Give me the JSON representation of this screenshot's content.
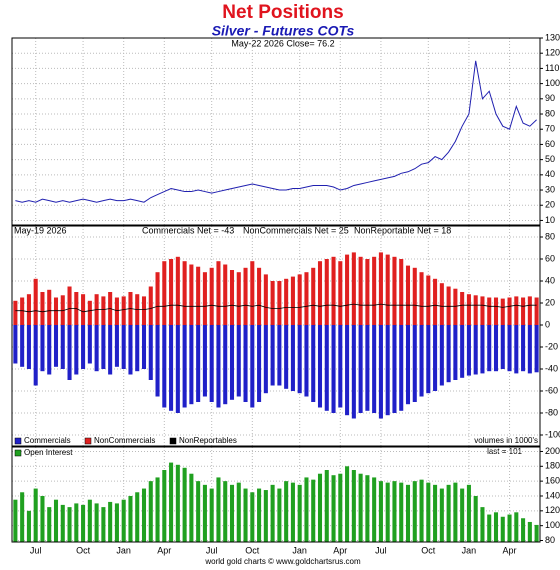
{
  "title": "Net Positions",
  "subtitle": "Silver - Futures COTs",
  "footer": "world gold charts © www.goldchartsrus.com",
  "chart_data": [
    {
      "type": "line",
      "annotation": "May-22  2026  Close= 76.2",
      "color": "#2020b0",
      "values": [
        23,
        22,
        23,
        22,
        24,
        23,
        22,
        23,
        22,
        23,
        24,
        23,
        22,
        23,
        24,
        23,
        23,
        24,
        23,
        22,
        25,
        27,
        29,
        31,
        30,
        29,
        29,
        30,
        29,
        28,
        29,
        30,
        31,
        32,
        33,
        34,
        33,
        32,
        31,
        30,
        30,
        31,
        31,
        32,
        33,
        33,
        33,
        32,
        30,
        31,
        33,
        34,
        35,
        36,
        37,
        38,
        39,
        41,
        42,
        44,
        47,
        48,
        52,
        50,
        55,
        62,
        72,
        80,
        115,
        90,
        95,
        80,
        72,
        70,
        85,
        74,
        72,
        76.2
      ],
      "ylim": [
        7,
        130
      ],
      "yticks": [
        10,
        20,
        30,
        40,
        50,
        60,
        70,
        80,
        90,
        100,
        110,
        120,
        130
      ],
      "grid": true
    },
    {
      "type": "bar",
      "stacked": true,
      "date_label": "May-19  2026",
      "annotations": [
        "Commercials Net = -43",
        "NonCommercials Net = 25",
        "NonReportable Net = 18"
      ],
      "note": "volumes in 1000's",
      "series": [
        {
          "name": "Commercials",
          "color": "#2020c8",
          "values": [
            -35,
            -38,
            -40,
            -55,
            -42,
            -45,
            -38,
            -40,
            -50,
            -45,
            -40,
            -35,
            -42,
            -40,
            -45,
            -38,
            -40,
            -45,
            -42,
            -40,
            -50,
            -65,
            -75,
            -78,
            -80,
            -75,
            -72,
            -70,
            -65,
            -70,
            -75,
            -72,
            -68,
            -65,
            -70,
            -75,
            -70,
            -62,
            -55,
            -55,
            -58,
            -60,
            -62,
            -65,
            -70,
            -75,
            -78,
            -80,
            -75,
            -82,
            -85,
            -80,
            -78,
            -80,
            -85,
            -82,
            -80,
            -78,
            -72,
            -70,
            -65,
            -62,
            -60,
            -55,
            -52,
            -50,
            -48,
            -46,
            -45,
            -44,
            -42,
            -42,
            -40,
            -42,
            -44,
            -42,
            -44,
            -43
          ]
        },
        {
          "name": "NonCommercials",
          "color": "#e02020",
          "values": [
            22,
            25,
            28,
            42,
            30,
            32,
            25,
            27,
            35,
            30,
            28,
            22,
            28,
            26,
            30,
            25,
            26,
            30,
            28,
            26,
            35,
            48,
            58,
            60,
            62,
            58,
            55,
            53,
            48,
            52,
            58,
            55,
            50,
            48,
            52,
            58,
            52,
            46,
            40,
            40,
            42,
            44,
            46,
            48,
            52,
            58,
            60,
            62,
            58,
            64,
            66,
            62,
            60,
            62,
            66,
            64,
            62,
            60,
            54,
            52,
            48,
            45,
            42,
            38,
            35,
            33,
            30,
            28,
            27,
            26,
            25,
            25,
            24,
            25,
            26,
            25,
            26,
            25
          ]
        },
        {
          "name": "NonReportables",
          "color": "#000000",
          "mark": "line",
          "values": [
            13,
            13,
            12,
            13,
            12,
            13,
            13,
            13,
            15,
            15,
            12,
            13,
            14,
            14,
            15,
            13,
            14,
            15,
            14,
            14,
            15,
            17,
            17,
            18,
            18,
            17,
            17,
            17,
            17,
            18,
            17,
            17,
            18,
            17,
            18,
            17,
            18,
            16,
            15,
            15,
            16,
            16,
            16,
            17,
            18,
            17,
            18,
            18,
            17,
            18,
            19,
            18,
            18,
            18,
            19,
            18,
            18,
            18,
            18,
            18,
            17,
            17,
            18,
            17,
            17,
            17,
            18,
            18,
            18,
            18,
            17,
            17,
            16,
            17,
            18,
            17,
            18,
            18
          ]
        }
      ],
      "ylim": [
        -110,
        90
      ],
      "yticks": [
        -100,
        -80,
        -60,
        -40,
        -20,
        0,
        20,
        40,
        60,
        80
      ],
      "grid": true
    },
    {
      "type": "bar",
      "annotation": "last = 101",
      "categories": [
        null,
        null,
        null,
        "Jul",
        null,
        null,
        null,
        null,
        null,
        null,
        "Oct",
        null,
        null,
        null,
        null,
        null,
        "Jan",
        null,
        null,
        null,
        null,
        null,
        "Apr",
        null,
        null,
        null,
        null,
        null,
        null,
        "Jul",
        null,
        null,
        null,
        null,
        null,
        "Oct",
        null,
        null,
        null,
        null,
        null,
        null,
        "Jan",
        null,
        null,
        null,
        null,
        null,
        "Apr",
        null,
        null,
        null,
        null,
        null,
        "Jul",
        null,
        null,
        null,
        null,
        null,
        null,
        "Oct",
        null,
        null,
        null,
        null,
        null,
        "Jan",
        null,
        null,
        null,
        null,
        null,
        "Apr",
        null,
        null,
        null,
        null
      ],
      "series": [
        {
          "name": "Open Interest",
          "color": "#20a020",
          "values": [
            135,
            145,
            120,
            150,
            140,
            125,
            135,
            128,
            125,
            130,
            128,
            135,
            130,
            125,
            132,
            130,
            135,
            140,
            145,
            150,
            160,
            165,
            175,
            185,
            182,
            178,
            170,
            160,
            155,
            150,
            165,
            160,
            155,
            158,
            150,
            145,
            150,
            148,
            155,
            150,
            160,
            158,
            155,
            165,
            162,
            170,
            175,
            168,
            170,
            180,
            175,
            170,
            168,
            165,
            160,
            158,
            160,
            158,
            155,
            160,
            162,
            158,
            155,
            150,
            155,
            158,
            150,
            155,
            140,
            125,
            115,
            118,
            112,
            115,
            118,
            110,
            105,
            101
          ]
        }
      ],
      "ylim": [
        78,
        206
      ],
      "yticks": [
        80,
        100,
        120,
        140,
        160,
        180,
        200
      ],
      "grid": true
    }
  ]
}
